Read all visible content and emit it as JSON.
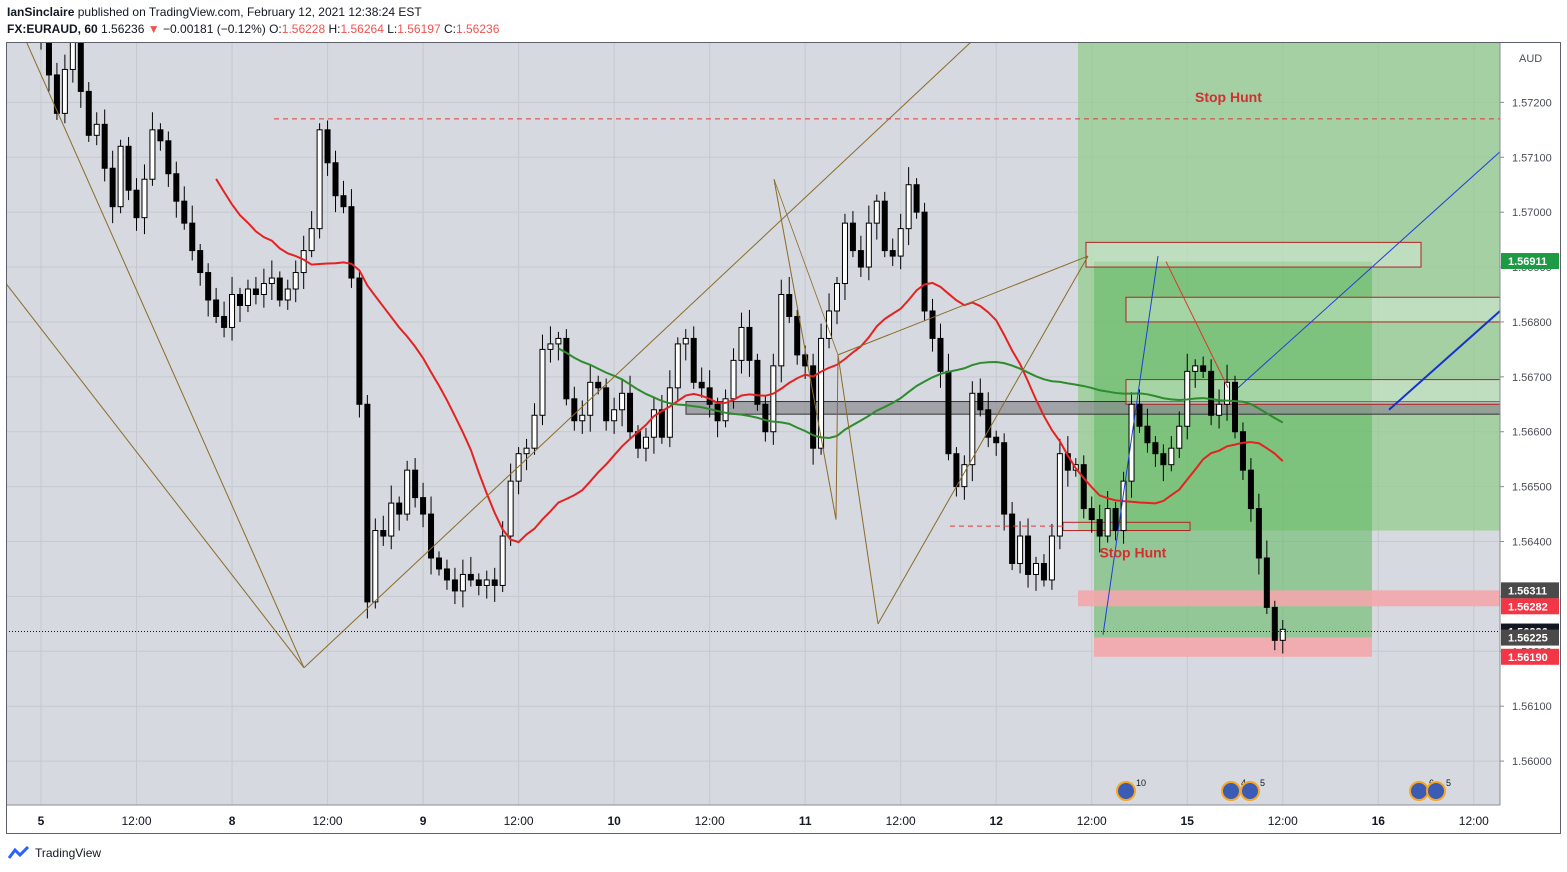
{
  "header": {
    "publisher": "IanSinclaire",
    "published_text": "published on TradingView.com, February 12, 2021 12:38:24 EST",
    "symbol": "FX:EURAUD, 60",
    "last": "1.56236",
    "change": "−0.00181 (−0.12%)",
    "o_label": "O:",
    "o": "1.56228",
    "h_label": "H:",
    "h": "1.56264",
    "l_label": "L:",
    "l": "1.56197",
    "c_label": "C:",
    "c": "1.56236"
  },
  "footer": {
    "brand": "TradingView"
  },
  "chart_data": {
    "type": "candlestick",
    "currency": "AUD",
    "ylim": [
      1.5592,
      1.5731
    ],
    "y_ticks": [
      "1.57200",
      "1.57100",
      "1.57000",
      "1.56900",
      "1.56800",
      "1.56700",
      "1.56600",
      "1.56500",
      "1.56400",
      "1.56300",
      "1.56200",
      "1.56100",
      "1.56000"
    ],
    "y_tick_values": [
      1.572,
      1.571,
      1.57,
      1.569,
      1.568,
      1.567,
      1.566,
      1.565,
      1.564,
      1.563,
      1.562,
      1.561,
      1.56
    ],
    "price_tags": [
      {
        "label": "1.56911",
        "value": 1.56911,
        "color": "#1e9a44"
      },
      {
        "label": "1.56311",
        "value": 1.56311,
        "color": "#4a4a4a"
      },
      {
        "label": "1.56282",
        "value": 1.56282,
        "color": "#f23645"
      },
      {
        "label": "1.56236",
        "value": 1.56236,
        "color": "#131722"
      },
      {
        "label": "1.56225",
        "value": 1.56225,
        "color": "#4a4a4a"
      },
      {
        "label": "1.56190",
        "value": 1.5619,
        "color": "#f23645"
      }
    ],
    "x_ticks": [
      {
        "label": "5",
        "bar": 0
      },
      {
        "label": "12:00",
        "bar": 12
      },
      {
        "label": "8",
        "bar": 24
      },
      {
        "label": "12:00",
        "bar": 36
      },
      {
        "label": "9",
        "bar": 48
      },
      {
        "label": "12:00",
        "bar": 60
      },
      {
        "label": "10",
        "bar": 72
      },
      {
        "label": "12:00",
        "bar": 84
      },
      {
        "label": "11",
        "bar": 96
      },
      {
        "label": "12:00",
        "bar": 108
      },
      {
        "label": "12",
        "bar": 120
      },
      {
        "label": "12:00",
        "bar": 132
      },
      {
        "label": "15",
        "bar": 144
      },
      {
        "label": "12:00",
        "bar": 156
      },
      {
        "label": "16",
        "bar": 168
      },
      {
        "label": "12:00",
        "bar": 180
      }
    ],
    "candles_close": [
      1.5732,
      1.5725,
      1.5718,
      1.5726,
      1.5731,
      1.5722,
      1.5714,
      1.5716,
      1.5708,
      1.5701,
      1.5712,
      1.5704,
      1.5699,
      1.5706,
      1.5715,
      1.5713,
      1.5707,
      1.5702,
      1.5698,
      1.5693,
      1.5689,
      1.5684,
      1.5681,
      1.5679,
      1.5685,
      1.5683,
      1.5686,
      1.5685,
      1.5687,
      1.5688,
      1.5684,
      1.5686,
      1.5689,
      1.5693,
      1.5697,
      1.5715,
      1.5709,
      1.5703,
      1.5701,
      1.5688,
      1.5665,
      1.5629,
      1.5642,
      1.5641,
      1.5647,
      1.5645,
      1.5653,
      1.5648,
      1.5645,
      1.5637,
      1.5635,
      1.5633,
      1.5631,
      1.5634,
      1.5633,
      1.5632,
      1.5633,
      1.5632,
      1.5641,
      1.5651,
      1.5656,
      1.5657,
      1.5663,
      1.5675,
      1.5676,
      1.5677,
      1.5666,
      1.5662,
      1.5663,
      1.5669,
      1.5668,
      1.5662,
      1.5664,
      1.5667,
      1.566,
      1.5657,
      1.5659,
      1.5664,
      1.5659,
      1.5668,
      1.5676,
      1.5677,
      1.5669,
      1.5668,
      1.5665,
      1.5662,
      1.5666,
      1.5673,
      1.5679,
      1.5673,
      1.5665,
      1.566,
      1.5672,
      1.5685,
      1.5681,
      1.5674,
      1.5672,
      1.5657,
      1.5677,
      1.5682,
      1.5687,
      1.5698,
      1.5693,
      1.569,
      1.5698,
      1.5702,
      1.5693,
      1.5692,
      1.5697,
      1.5705,
      1.57,
      1.5682,
      1.5677,
      1.5671,
      1.5656,
      1.565,
      1.5654,
      1.5667,
      1.5664,
      1.5659,
      1.5658,
      1.5645,
      1.5636,
      1.5641,
      1.5634,
      1.5636,
      1.5633,
      1.5641,
      1.5656,
      1.5653,
      1.5654,
      1.5646,
      1.5644,
      1.5641,
      1.5646,
      1.5642,
      1.5651,
      1.5665,
      1.5661,
      1.5658,
      1.5656,
      1.5654,
      1.5657,
      1.5661,
      1.5671,
      1.5672,
      1.5671,
      1.5663,
      1.5665,
      1.5669,
      1.566,
      1.5653,
      1.5646,
      1.5637,
      1.5628,
      1.5622,
      1.5624
    ],
    "ma_fast": {
      "color": "#e52222"
    },
    "ma_slow": {
      "color": "#2e8b2e"
    },
    "annotations": [
      {
        "text": "Stop Hunt",
        "price": 1.5721,
        "bar": 150,
        "color": "#d32f2f"
      },
      {
        "text": "Stop Hunt",
        "price": 1.5638,
        "bar": 138,
        "color": "#d32f2f"
      }
    ]
  }
}
